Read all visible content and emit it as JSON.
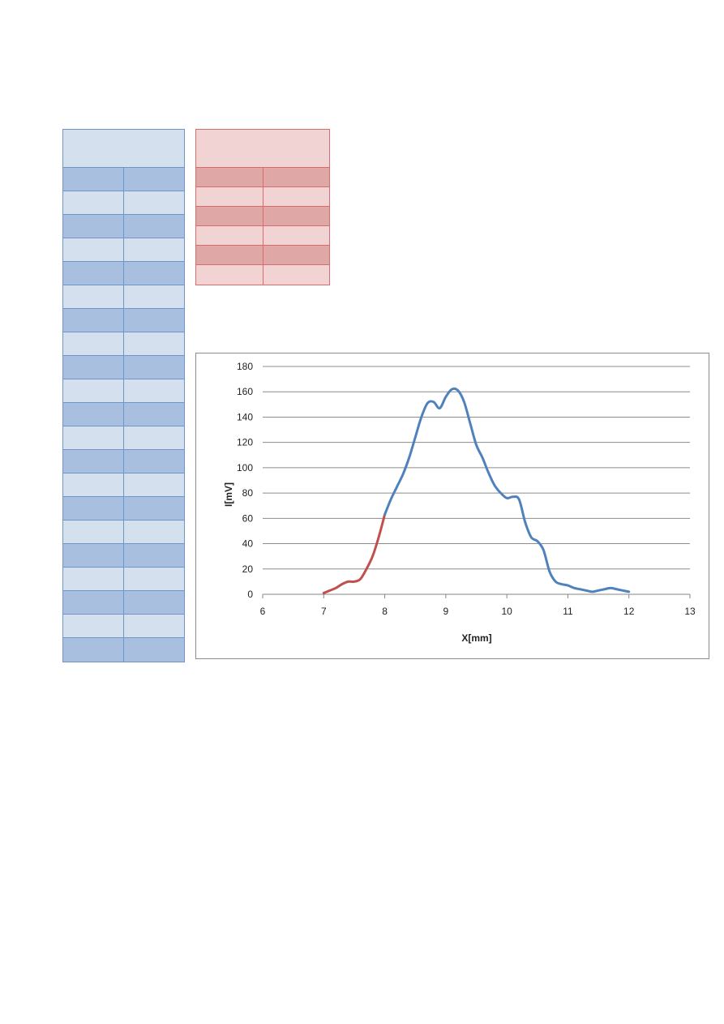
{
  "chart_data": {
    "type": "line",
    "xlabel": "X[mm]",
    "ylabel": "I[mV]",
    "xlim": [
      6,
      13
    ],
    "ylim": [
      0,
      180
    ],
    "x_ticks": [
      6,
      7,
      8,
      9,
      10,
      11,
      12,
      13
    ],
    "y_ticks": [
      0,
      20,
      40,
      60,
      80,
      100,
      120,
      140,
      160,
      180
    ],
    "grid": "horizontal",
    "series": [
      {
        "color": "#c0504d",
        "x": [
          7.0,
          7.1,
          7.2,
          7.3,
          7.4,
          7.5,
          7.6,
          7.7,
          7.8,
          7.9,
          8.0
        ],
        "y": [
          1,
          3,
          5,
          8,
          10,
          10,
          12,
          20,
          30,
          45,
          63
        ]
      },
      {
        "color": "#4f81bd",
        "x": [
          8.0,
          8.1,
          8.2,
          8.3,
          8.4,
          8.5,
          8.6,
          8.7,
          8.8,
          8.9,
          9.0,
          9.1,
          9.2,
          9.3,
          9.4,
          9.5,
          9.6,
          9.7,
          9.8,
          9.9,
          10.0,
          10.1,
          10.2,
          10.3,
          10.4,
          10.5,
          10.6,
          10.7,
          10.8,
          10.9,
          11.0,
          11.1,
          11.2,
          11.3,
          11.4,
          11.5,
          11.6,
          11.7,
          11.8,
          11.9,
          12.0
        ],
        "y": [
          63,
          75,
          85,
          95,
          108,
          124,
          140,
          151,
          152,
          147,
          156,
          162,
          161,
          152,
          135,
          118,
          108,
          96,
          86,
          80,
          76,
          77,
          75,
          57,
          45,
          42,
          35,
          18,
          10,
          8,
          7,
          5,
          4,
          3,
          2,
          3,
          4,
          5,
          4,
          3,
          2
        ]
      }
    ]
  }
}
